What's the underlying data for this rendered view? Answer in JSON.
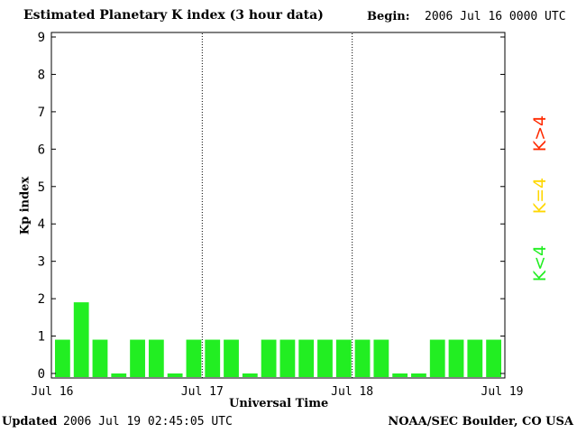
{
  "header": {
    "title": "Estimated Planetary K index (3 hour data)",
    "begin_label": "Begin:",
    "begin_value": "2006 Jul 16 0000 UTC"
  },
  "footer": {
    "updated_label": "Updated",
    "updated_value": "2006 Jul 19 02:45:05 UTC",
    "credit": "NOAA/SEC Boulder, CO USA"
  },
  "legend": {
    "high": {
      "label": "K>4",
      "color": "#ff2a00"
    },
    "equal": {
      "label": "K=4",
      "color": "#ffd700"
    },
    "low": {
      "label": "K<4",
      "color": "#22ee22"
    }
  },
  "chart_data": {
    "type": "bar",
    "title": "Estimated Planetary K index (3 hour data)",
    "xlabel": "Universal Time",
    "ylabel": "Kp index",
    "ylim": [
      0,
      9
    ],
    "yticks": [
      "0",
      "1",
      "2",
      "3",
      "4",
      "5",
      "6",
      "7",
      "8",
      "9"
    ],
    "xticks": [
      "Jul 16",
      "Jul 17",
      "Jul 18",
      "Jul 19"
    ],
    "interval_hours": 3,
    "bar_color": "#22ee22",
    "grid": "dotted vertical lines at day boundaries",
    "values": [
      1,
      2,
      1,
      0,
      1,
      1,
      0,
      1,
      1,
      1,
      0,
      1,
      1,
      1,
      1,
      1,
      1,
      1,
      0,
      0,
      1,
      1,
      1,
      1
    ]
  }
}
